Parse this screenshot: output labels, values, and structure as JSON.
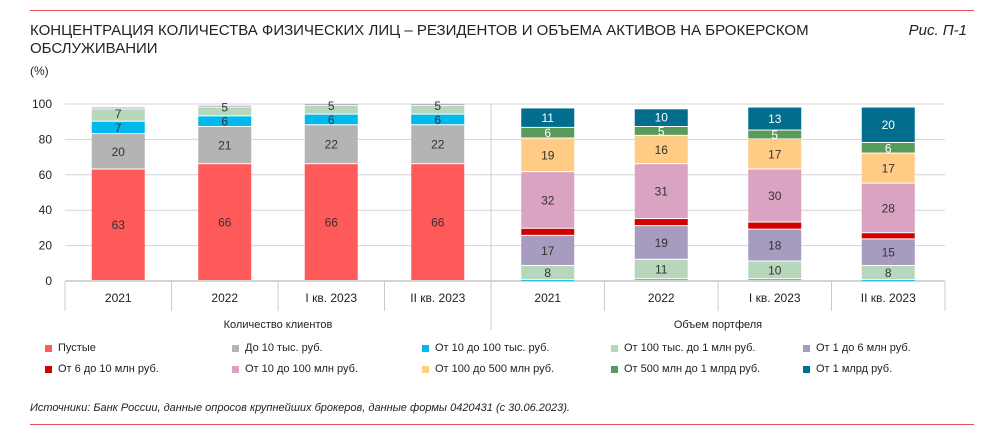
{
  "title": "КОНЦЕНТРАЦИЯ КОЛИЧЕСТВА ФИЗИЧЕСКИХ ЛИЦ – РЕЗИДЕНТОВ И ОБЪЕМА АКТИВОВ НА БРОКЕРСКОМ ОБСЛУЖИВАНИИ",
  "figure_label": "Рис. П-1",
  "source": "Источники: Банк России, данные опросов крупнейших брокеров, данные формы 0420431 (с 30.06.2023).",
  "chart_data": {
    "type": "bar",
    "stacked": true,
    "ylabel": "(%)",
    "ylim": [
      0,
      100
    ],
    "yticks": [
      0,
      20,
      40,
      60,
      80,
      100
    ],
    "grid": true,
    "legend_position": "bottom",
    "categories": [
      "2021",
      "2022",
      "I кв. 2023",
      "II кв. 2023"
    ],
    "legend": [
      {
        "name": "Пустые",
        "color": "#ff5a5a"
      },
      {
        "name": "До 10 тыс. руб.",
        "color": "#b4b4b4"
      },
      {
        "name": "От 10 до 100 тыс. руб.",
        "color": "#00b9ec"
      },
      {
        "name": "От 100 тыс. до 1 млн руб.",
        "color": "#b6d7b9"
      },
      {
        "name": "От 1 до 6 млн руб.",
        "color": "#a79bbf"
      },
      {
        "name": "От 6 до 10 млн руб.",
        "color": "#d20000"
      },
      {
        "name": "От 10 до 100 млн руб.",
        "color": "#daa3c2"
      },
      {
        "name": "От 100 до 500 млн руб.",
        "color": "#ffcb85"
      },
      {
        "name": "От 500 млн до 1 млрд руб.",
        "color": "#5a9a5a"
      },
      {
        "name": "От 1 млрд руб.",
        "color": "#006e8c"
      }
    ],
    "groups": [
      {
        "label": "Количество клиентов",
        "series": [
          {
            "name": "Пустые",
            "values": [
              63,
              66,
              66,
              66
            ],
            "labels": [
              "63",
              "66",
              "66",
              "66"
            ]
          },
          {
            "name": "До 10 тыс. руб.",
            "values": [
              20,
              21,
              22,
              22
            ],
            "labels": [
              "20",
              "21",
              "22",
              "22"
            ]
          },
          {
            "name": "От 10 до 100 тыс. руб.",
            "values": [
              7,
              6,
              6,
              6
            ],
            "labels": [
              "7",
              "6",
              "6",
              "6"
            ]
          },
          {
            "name": "От 100 тыс. до 1 млн руб.",
            "values": [
              7,
              5,
              5,
              5
            ],
            "labels": [
              "7",
              "5",
              "5",
              "5"
            ]
          },
          {
            "name": "От 1 до 6 млн руб.",
            "values": [
              1,
              1,
              1,
              1
            ],
            "labels": [
              "",
              "",
              "",
              ""
            ]
          }
        ]
      },
      {
        "label": "Объем портфеля",
        "series": [
          {
            "name": "От 10 до 100 тыс. руб.",
            "values": [
              0.5,
              1,
              1,
              0.5
            ],
            "labels": [
              "",
              "",
              "",
              ""
            ]
          },
          {
            "name": "От 100 тыс. до 1 млн руб.",
            "values": [
              8,
              11,
              10,
              8
            ],
            "labels": [
              "8",
              "11",
              "10",
              "8"
            ]
          },
          {
            "name": "От 1 до 6 млн руб.",
            "values": [
              17,
              19,
              18,
              15
            ],
            "labels": [
              "17",
              "19",
              "18",
              "15"
            ]
          },
          {
            "name": "От 6 до 10 млн руб.",
            "values": [
              4,
              4,
              4,
              3.5
            ],
            "labels": [
              "",
              "",
              "",
              ""
            ]
          },
          {
            "name": "От 10 до 100 млн руб.",
            "values": [
              32,
              31,
              30,
              28
            ],
            "labels": [
              "32",
              "31",
              "30",
              "28"
            ]
          },
          {
            "name": "От 100 до 500 млн руб.",
            "values": [
              19,
              16,
              17,
              17
            ],
            "labels": [
              "19",
              "16",
              "17",
              "17"
            ]
          },
          {
            "name": "От 500 млн до 1 млрд руб.",
            "values": [
              6,
              5,
              5,
              6
            ],
            "labels": [
              "6",
              "5",
              "5",
              "6"
            ]
          },
          {
            "name": "От 1 млрд руб.",
            "values": [
              11,
              10,
              13,
              20
            ],
            "labels": [
              "11",
              "10",
              "13",
              "20"
            ]
          }
        ]
      }
    ]
  }
}
